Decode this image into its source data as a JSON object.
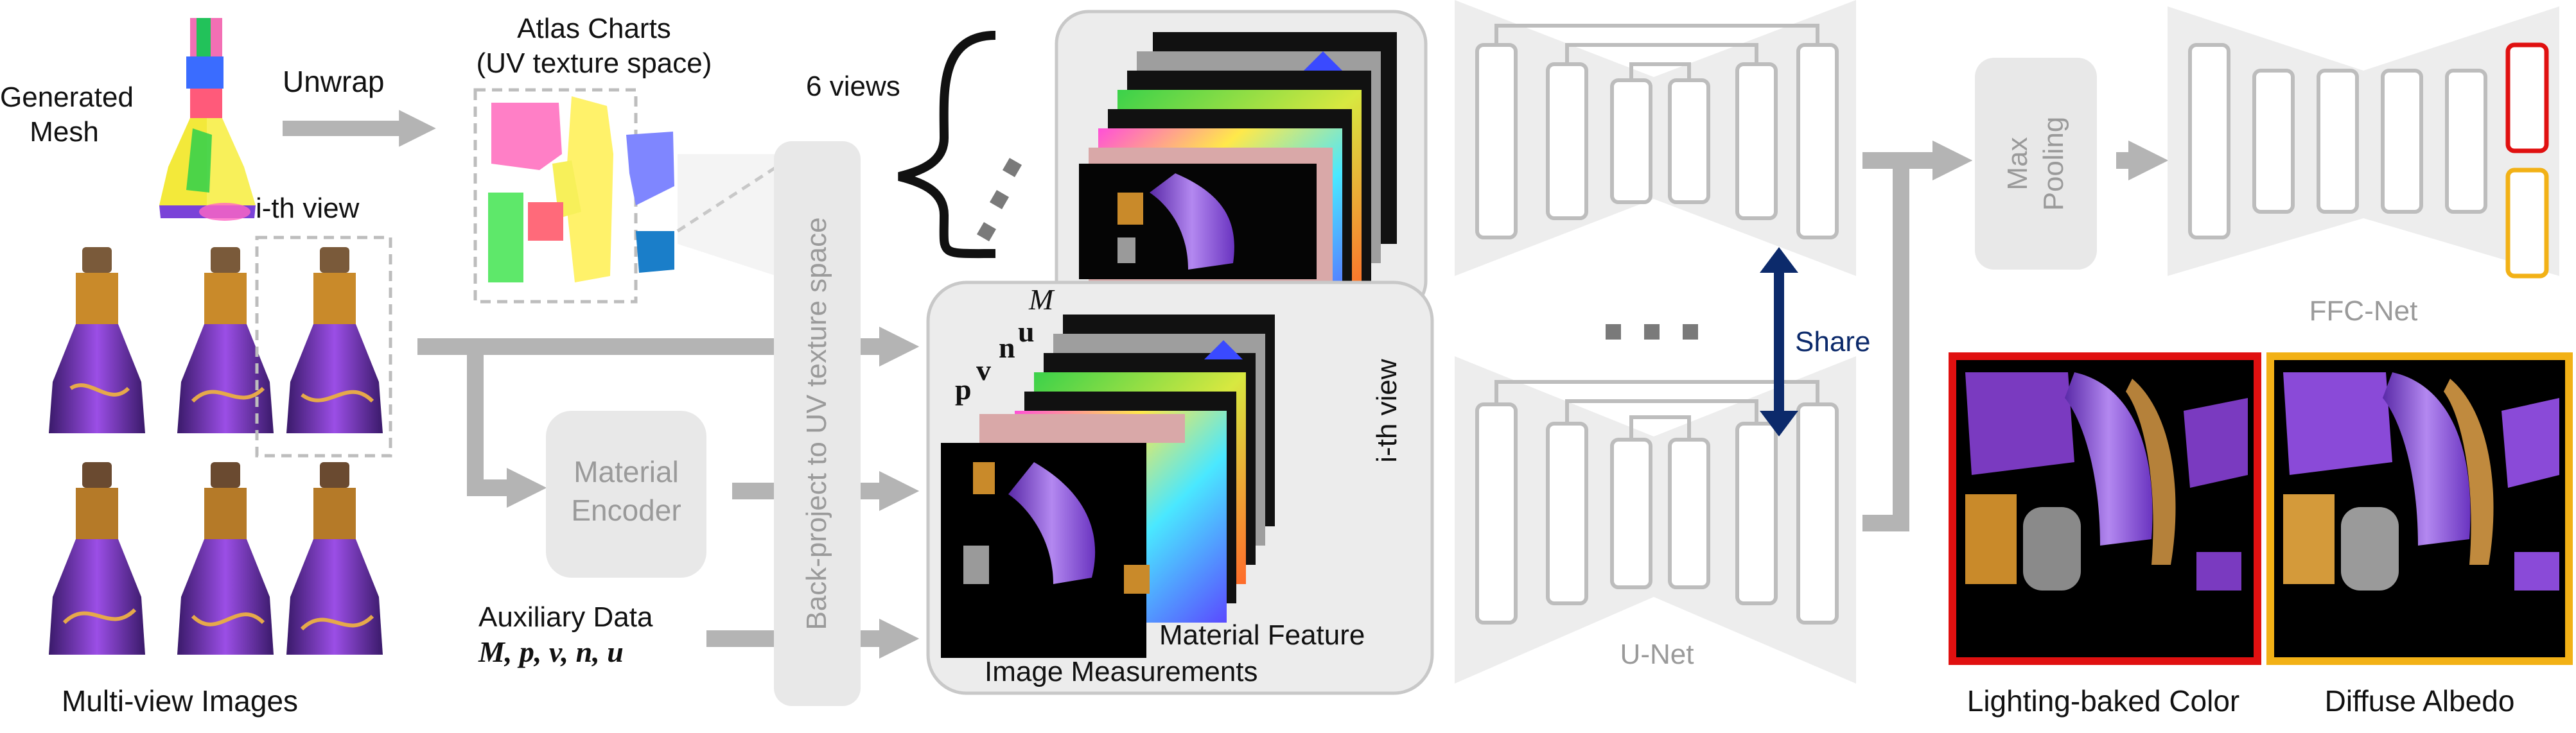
{
  "left": {
    "mesh_label_line1": "Generated",
    "mesh_label_line2": "Mesh",
    "unwrap_label": "Unwrap",
    "atlas_label_line1": "Atlas Charts",
    "atlas_label_line2": "(UV texture space)",
    "ith_view_label": "i-th view",
    "multiview_label": "Multi-view Images"
  },
  "middle": {
    "material_encoder_line1": "Material",
    "material_encoder_line2": "Encoder",
    "auxiliary_line1": "Auxiliary Data",
    "auxiliary_line2": "M, p, v, n, u",
    "backproject_label": "Back-project to UV texture space",
    "six_views_label": "6 views",
    "stack_letters": [
      "M",
      "u",
      "n",
      "v",
      "p"
    ],
    "ith_view_side_label": "i-th view",
    "material_feature_label": "Material Feature",
    "image_measurements_label": "Image Measurements"
  },
  "right": {
    "unet_label": "U-Net",
    "share_label": "Share",
    "maxpool_line1": "Max",
    "maxpool_line2": "Pooling",
    "ffc_label": "FFC-Net",
    "lighting_label": "Lighting-baked Color",
    "albedo_label": "Diffuse Albedo"
  },
  "colors": {
    "arrow_grey": "#b4b4b4",
    "box_grey": "#e8e8e8",
    "share_arrow": "#0c2a6b",
    "lighting_border": "#e01010",
    "albedo_border": "#f2b116",
    "purple": "#8a3ed8",
    "gold": "#c98a2a"
  }
}
